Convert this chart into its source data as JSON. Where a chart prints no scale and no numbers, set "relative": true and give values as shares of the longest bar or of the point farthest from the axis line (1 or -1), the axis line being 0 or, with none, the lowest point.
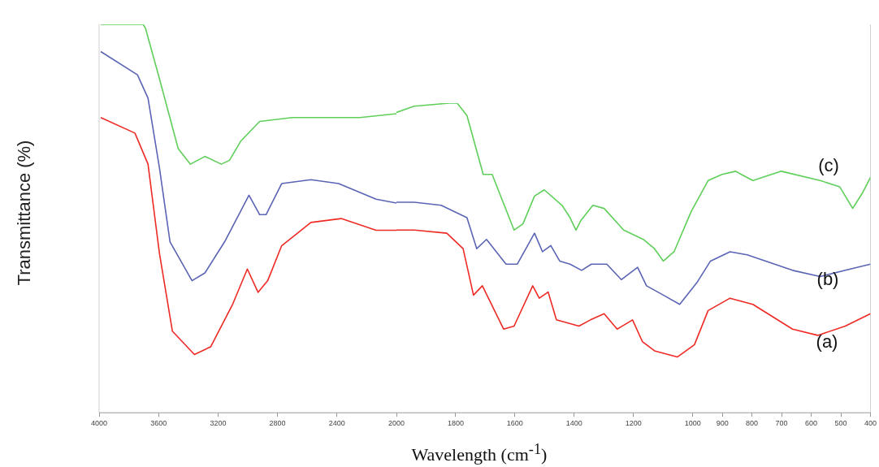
{
  "chart_data": [
    {
      "type": "line",
      "relative": true,
      "ylabel": "Transmittance (%)",
      "xlim": [
        4000,
        2000
      ],
      "xticks": [
        4000,
        3600,
        3200,
        2800,
        2400,
        2000
      ],
      "legend": false,
      "series": [
        {
          "color": "#ee2a24",
          "x": [
            3989,
            3759,
            3671,
            3594,
            3507,
            3359,
            3249,
            3101,
            3003,
            2931,
            2866,
            2772,
            2575,
            2372,
            2137,
            2000
          ],
          "values": [
            0.76,
            0.72,
            0.64,
            0.41,
            0.21,
            0.15,
            0.17,
            0.28,
            0.37,
            0.31,
            0.34,
            0.43,
            0.49,
            0.5,
            0.47,
            0.47
          ]
        },
        {
          "color": "#5a64b4",
          "x": [
            3989,
            3742,
            3671,
            3594,
            3523,
            3375,
            3288,
            3156,
            2992,
            2920,
            2877,
            2772,
            2575,
            2389,
            2137,
            2000
          ],
          "values": [
            0.93,
            0.87,
            0.81,
            0.63,
            0.44,
            0.34,
            0.36,
            0.44,
            0.56,
            0.51,
            0.51,
            0.59,
            0.6,
            0.59,
            0.55,
            0.54
          ]
        },
        {
          "color": "#5fcf5a",
          "x": [
            3989,
            3704,
            3688,
            3594,
            3468,
            3386,
            3288,
            3178,
            3123,
            3046,
            2920,
            2701,
            2246,
            2000
          ],
          "values": [
            1.0,
            1.0,
            0.99,
            0.86,
            0.68,
            0.64,
            0.66,
            0.64,
            0.65,
            0.7,
            0.75,
            0.76,
            0.76,
            0.77
          ]
        }
      ]
    },
    {
      "type": "line",
      "relative": true,
      "xlabel": "Wavelength (cm$^{-1}$)",
      "xlim": [
        2000,
        400
      ],
      "xticks": [
        1800,
        1600,
        1400,
        1200,
        1000,
        900,
        800,
        700,
        600,
        500,
        400
      ],
      "legend": false,
      "series": [
        {
          "color": "#ee2a24",
          "x": [
            2000,
            1940,
            1830,
            1775,
            1740,
            1710,
            1638,
            1603,
            1540,
            1518,
            1488,
            1460,
            1384,
            1345,
            1299,
            1255,
            1203,
            1170,
            1129,
            1052,
            994,
            948,
            874,
            797,
            663,
            578,
            485,
            400
          ],
          "values": [
            0.59,
            0.59,
            0.58,
            0.53,
            0.38,
            0.41,
            0.27,
            0.28,
            0.41,
            0.37,
            0.39,
            0.3,
            0.28,
            0.3,
            0.32,
            0.27,
            0.3,
            0.23,
            0.2,
            0.18,
            0.22,
            0.33,
            0.37,
            0.35,
            0.27,
            0.25,
            0.28,
            0.32
          ]
        },
        {
          "color": "#5a64b4",
          "x": [
            2000,
            1940,
            1849,
            1762,
            1729,
            1696,
            1630,
            1592,
            1534,
            1507,
            1479,
            1449,
            1414,
            1375,
            1342,
            1290,
            1241,
            1186,
            1156,
            1099,
            1044,
            986,
            940,
            874,
            816,
            663,
            570,
            485,
            400
          ],
          "values": [
            0.68,
            0.68,
            0.67,
            0.63,
            0.53,
            0.56,
            0.48,
            0.48,
            0.58,
            0.52,
            0.54,
            0.49,
            0.48,
            0.46,
            0.48,
            0.48,
            0.43,
            0.47,
            0.41,
            0.38,
            0.35,
            0.42,
            0.49,
            0.52,
            0.51,
            0.46,
            0.44,
            0.46,
            0.48
          ]
        },
        {
          "color": "#5fcf5a",
          "x": [
            2000,
            1940,
            1822,
            1795,
            1762,
            1707,
            1677,
            1603,
            1573,
            1534,
            1501,
            1441,
            1414,
            1394,
            1378,
            1337,
            1299,
            1233,
            1167,
            1129,
            1099,
            1063,
            1005,
            948,
            901,
            855,
            836,
            797,
            701,
            570,
            504,
            460,
            427,
            400
          ],
          "values": [
            0.97,
            0.99,
            1.0,
            1.0,
            0.96,
            0.77,
            0.77,
            0.59,
            0.61,
            0.7,
            0.72,
            0.67,
            0.63,
            0.59,
            0.62,
            0.67,
            0.66,
            0.59,
            0.56,
            0.53,
            0.49,
            0.52,
            0.65,
            0.75,
            0.77,
            0.78,
            0.77,
            0.75,
            0.78,
            0.75,
            0.73,
            0.66,
            0.71,
            0.76
          ]
        }
      ],
      "annotations": [
        "(c)",
        "(b)",
        "(a)"
      ]
    }
  ]
}
